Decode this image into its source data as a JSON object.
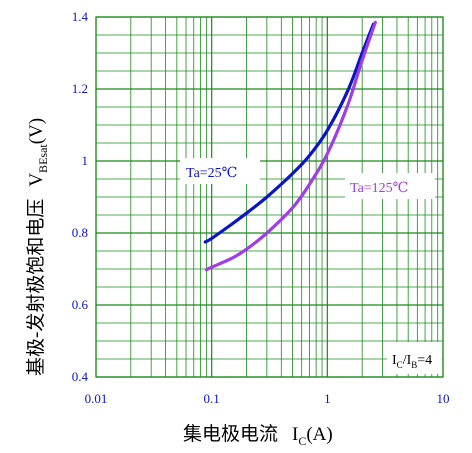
{
  "chart_data": {
    "type": "line",
    "x_scale": "log",
    "xlim": [
      0.01,
      10
    ],
    "ylim": [
      0.4,
      1.4
    ],
    "x_ticks": [
      {
        "value": 0.01,
        "label": "0.01"
      },
      {
        "value": 0.1,
        "label": "0.1"
      },
      {
        "value": 1,
        "label": "1"
      },
      {
        "value": 10,
        "label": "10"
      }
    ],
    "y_ticks": [
      {
        "value": 0.4,
        "label": "0.4"
      },
      {
        "value": 0.6,
        "label": "0.6"
      },
      {
        "value": 0.8,
        "label": "0.8"
      },
      {
        "value": 1.0,
        "label": "1"
      },
      {
        "value": 1.2,
        "label": "1.2"
      },
      {
        "value": 1.4,
        "label": "1.4"
      }
    ],
    "grid": true,
    "xlabel": {
      "text": "集电极电流",
      "symbol_main": "I",
      "symbol_sub": "C",
      "unit": "(A)"
    },
    "ylabel": {
      "text": "基极-发射极饱和电压",
      "symbol_main": "V",
      "symbol_sub": "BEsat",
      "unit": "(V)"
    },
    "condition": {
      "p1": "I",
      "s1": "C",
      "mid": "/I",
      "s2": "B",
      "end": "=4"
    },
    "series": [
      {
        "name": "Ta=25℃",
        "color": "#0a14c8",
        "x": [
          0.088,
          0.1,
          0.15,
          0.2,
          0.3,
          0.5,
          0.7,
          1.0,
          1.5,
          2.0,
          2.5
        ],
        "y": [
          0.775,
          0.785,
          0.825,
          0.855,
          0.9,
          0.965,
          1.015,
          1.085,
          1.195,
          1.3,
          1.38
        ]
      },
      {
        "name": "Ta=125℃",
        "color": "#a23ce6",
        "x": [
          0.09,
          0.1,
          0.15,
          0.2,
          0.3,
          0.5,
          0.7,
          1.0,
          1.5,
          2.0,
          2.6
        ],
        "y": [
          0.698,
          0.705,
          0.73,
          0.755,
          0.8,
          0.87,
          0.935,
          1.02,
          1.155,
          1.28,
          1.385
        ]
      }
    ]
  }
}
